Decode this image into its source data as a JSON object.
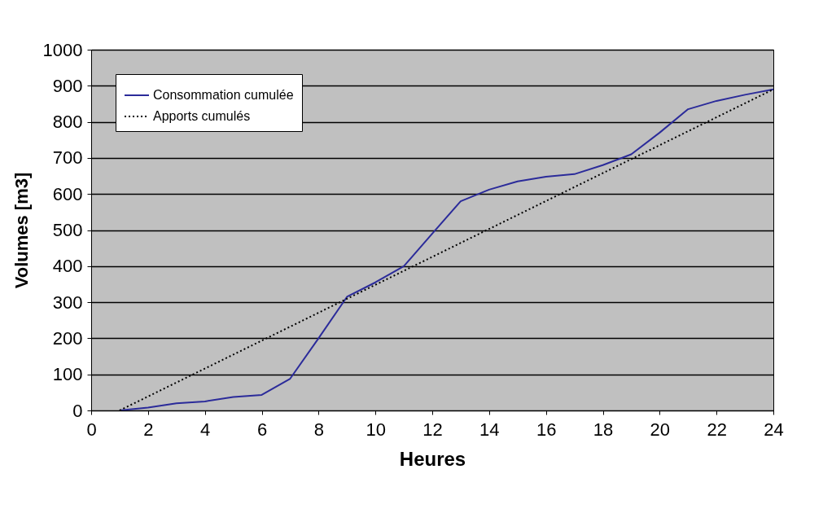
{
  "chart_data": {
    "type": "line",
    "xlabel": "Heures",
    "ylabel": "Volumes [m3]",
    "xlim": [
      0,
      24
    ],
    "xticks": [
      0,
      2,
      4,
      6,
      8,
      10,
      12,
      14,
      16,
      18,
      20,
      22,
      24
    ],
    "ylim": [
      0,
      1000
    ],
    "yticks": [
      0,
      100,
      200,
      300,
      400,
      500,
      600,
      700,
      800,
      900,
      1000
    ],
    "grid": "y",
    "legend": "top left",
    "series": [
      {
        "name": "Consommation cumulée",
        "color": "#2b2b9a",
        "line_style": "solid",
        "x": [
          1,
          2,
          3,
          4,
          5,
          6,
          7,
          8,
          9,
          10,
          11,
          12,
          13,
          14,
          15,
          16,
          17,
          18,
          19,
          20,
          21,
          22,
          23,
          24
        ],
        "values": [
          0,
          8,
          20,
          25,
          37,
          43,
          88,
          200,
          315,
          355,
          400,
          490,
          580,
          612,
          635,
          648,
          655,
          680,
          710,
          770,
          835,
          858,
          875,
          890
        ]
      },
      {
        "name": "Apports cumulés",
        "color": "#000000",
        "line_style": "dotted",
        "x": [
          1,
          24
        ],
        "values": [
          0,
          890
        ]
      }
    ]
  }
}
